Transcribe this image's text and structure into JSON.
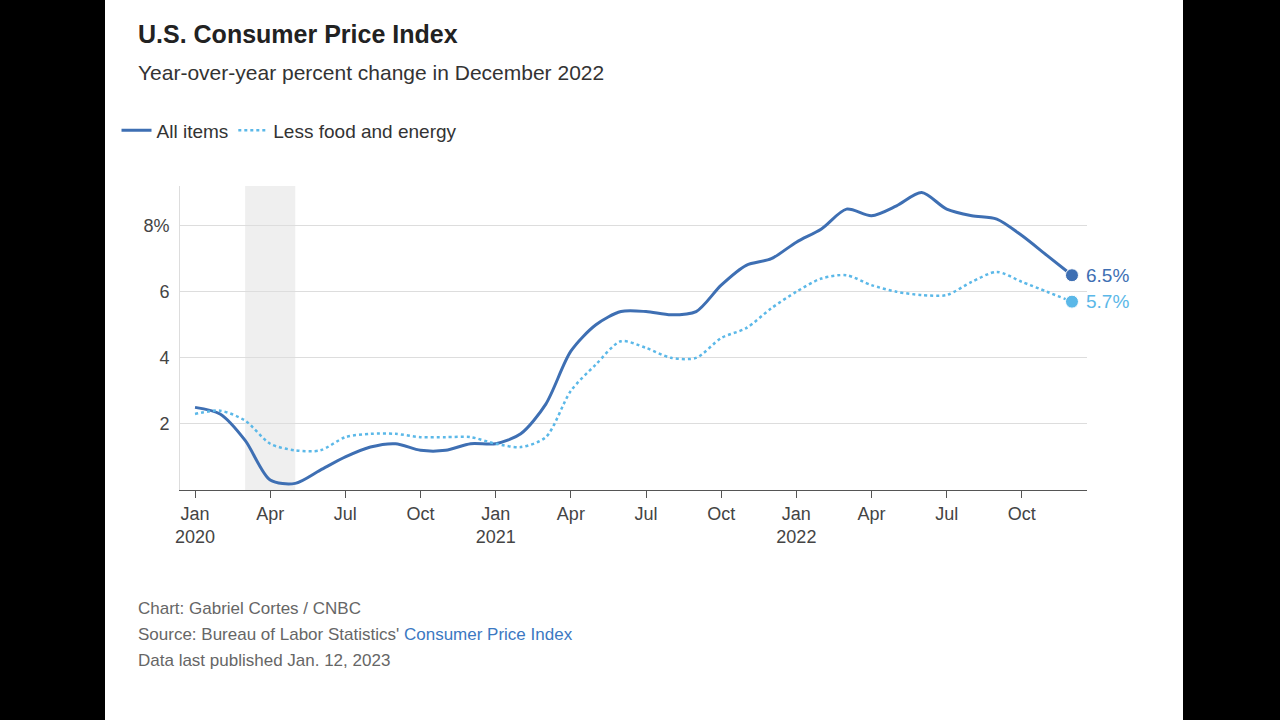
{
  "chart_data": {
    "type": "line",
    "title": "U.S. Consumer Price Index",
    "subtitle": "Year-over-year percent change in December 2022",
    "categories": [
      "Jan 2020",
      null,
      null,
      "Apr",
      null,
      null,
      "Jul",
      null,
      null,
      "Oct",
      null,
      null,
      "Jan 2021",
      null,
      null,
      "Apr",
      null,
      null,
      "Jul",
      null,
      null,
      "Oct",
      null,
      null,
      "Jan 2022",
      null,
      null,
      "Apr",
      null,
      null,
      "Jul",
      null,
      null,
      "Oct",
      null,
      null
    ],
    "series": [
      {
        "name": "All items",
        "color": "#3e6fb3",
        "line_style": "solid",
        "values": [
          2.5,
          2.3,
          1.5,
          0.3,
          0.2,
          0.6,
          1.0,
          1.3,
          1.4,
          1.2,
          1.2,
          1.4,
          1.4,
          1.7,
          2.6,
          4.2,
          5.0,
          5.4,
          5.4,
          5.3,
          5.4,
          6.2,
          6.8,
          7.0,
          7.5,
          7.9,
          8.5,
          8.3,
          8.6,
          9.0,
          8.5,
          8.3,
          8.2,
          7.7,
          7.1,
          6.5
        ]
      },
      {
        "name": "Less food and energy",
        "color": "#5bb8e8",
        "line_style": "dotted",
        "values": [
          2.3,
          2.4,
          2.1,
          1.4,
          1.2,
          1.2,
          1.6,
          1.7,
          1.7,
          1.6,
          1.6,
          1.6,
          1.4,
          1.3,
          1.6,
          3.0,
          3.8,
          4.5,
          4.3,
          4.0,
          4.0,
          4.6,
          4.9,
          5.5,
          6.0,
          6.4,
          6.5,
          6.2,
          6.0,
          5.9,
          5.9,
          6.3,
          6.6,
          6.3,
          6.0,
          5.7
        ]
      }
    ],
    "annotations": [
      {
        "series": "All items",
        "text": "6.5%",
        "value": 6.5
      },
      {
        "series": "Less food and energy",
        "text": "5.7%",
        "value": 5.7
      }
    ],
    "shaded_span": [
      2,
      4
    ],
    "ylim": [
      0,
      9.2
    ],
    "yticks": [
      2,
      4,
      6,
      {
        "value": 8,
        "label": "8%"
      }
    ],
    "grid": true,
    "legend": "top left",
    "footer": {
      "chart_credit": "Chart: Gabriel Cortes / CNBC",
      "source": "Source: Bureau of Labor Statistics'",
      "source_link": "Consumer Price Index",
      "published": "Data last published Jan. 12, 2023"
    }
  }
}
